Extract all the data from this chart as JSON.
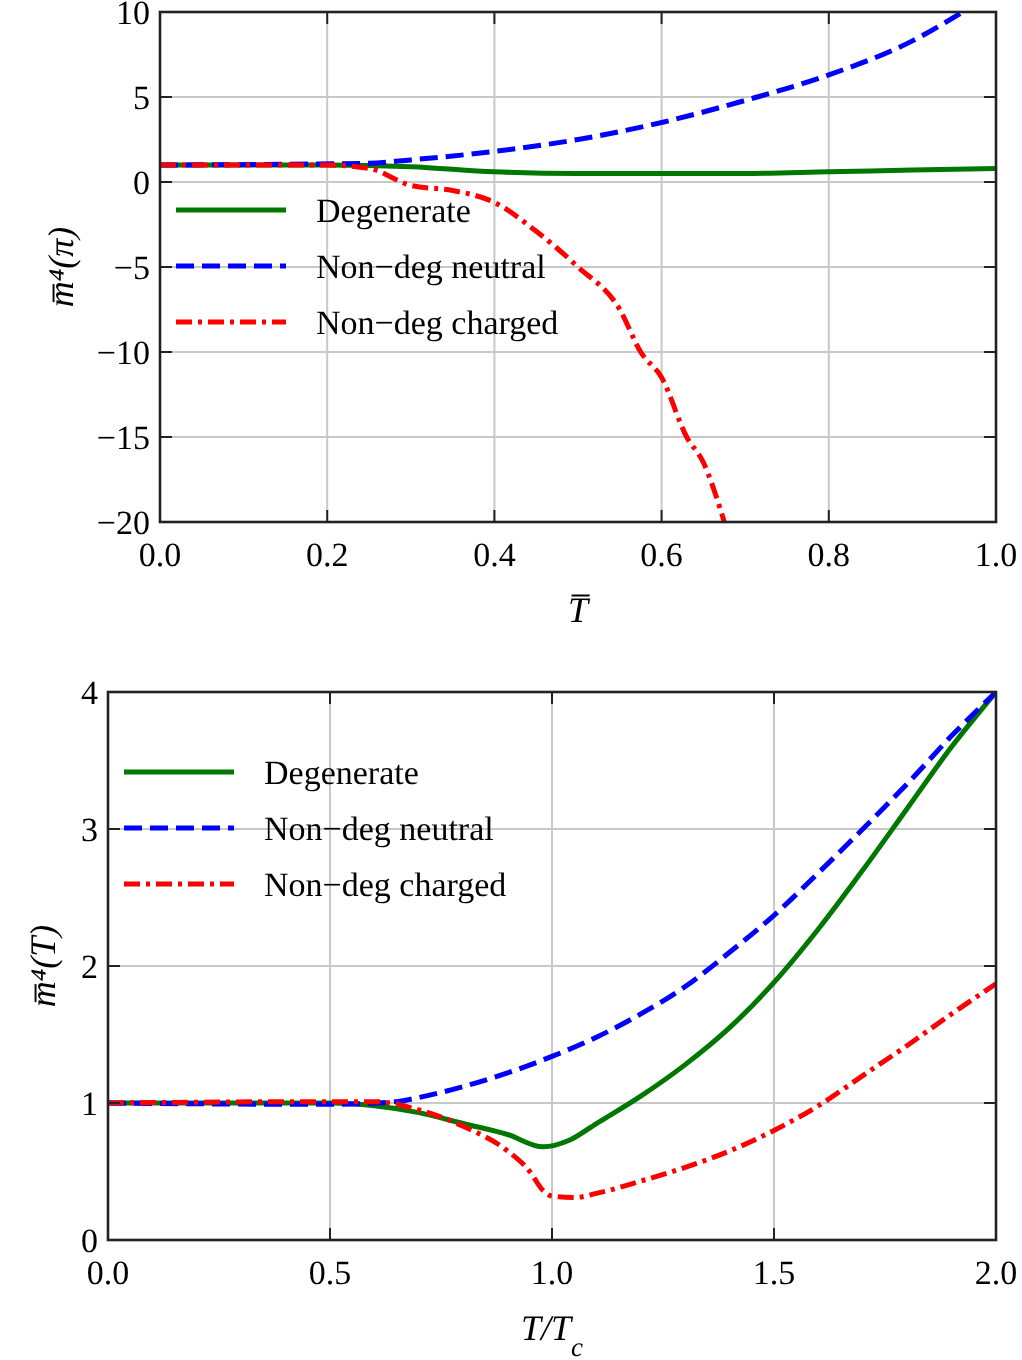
{
  "chart_data": [
    {
      "type": "line",
      "xlabel": "T̅",
      "ylabel": "m̅⁴(π)",
      "xlim": [
        0,
        1
      ],
      "ylim": [
        -20,
        10
      ],
      "xticks": [
        {
          "value": 0,
          "label": "0.0"
        },
        0.2,
        0.4,
        0.6,
        0.8,
        {
          "value": 1,
          "label": "1.0"
        }
      ],
      "yticks": [
        {
          "value": -20,
          "label": "−20"
        },
        {
          "value": -15,
          "label": "−15"
        },
        {
          "value": -10,
          "label": "−10"
        },
        {
          "value": -5,
          "label": "−5"
        },
        0,
        5,
        10
      ],
      "grid": true,
      "legend": "bottom left",
      "series": [
        {
          "name": "Degenerate",
          "color": "#007700",
          "line_style": "solid",
          "x": [
            0,
            0.2,
            0.3,
            0.4,
            0.5,
            0.6,
            0.7,
            0.8,
            0.9,
            1.0
          ],
          "values": [
            1,
            1,
            0.9,
            0.6,
            0.5,
            0.5,
            0.5,
            0.6,
            0.7,
            0.8
          ]
        },
        {
          "name": "Non−deg neutral",
          "color": "#0000ff",
          "line_style": "dashed",
          "x": [
            0,
            0.25,
            0.3,
            0.4,
            0.5,
            0.6,
            0.7,
            0.8,
            0.9,
            0.96
          ],
          "values": [
            1,
            1.1,
            1.3,
            1.8,
            2.5,
            3.5,
            4.8,
            6.3,
            8.3,
            10
          ]
        },
        {
          "name": "Non−deg charged",
          "color": "#ff0000",
          "line_style": "dashdot",
          "x": [
            0,
            0.2,
            0.25,
            0.3,
            0.35,
            0.4,
            0.45,
            0.5,
            0.55,
            0.575,
            0.6,
            0.63,
            0.65,
            0.675
          ],
          "values": [
            1,
            1,
            0.8,
            -0.2,
            -0.5,
            -1.2,
            -2.9,
            -5,
            -7.5,
            -10,
            -11.5,
            -15,
            -16.5,
            -20
          ]
        }
      ]
    },
    {
      "type": "line",
      "xlabel": "T/T$_{c}$",
      "ylabel": "m̅⁴(T)",
      "xlim": [
        0,
        2
      ],
      "ylim": [
        0,
        4
      ],
      "xticks": [
        {
          "value": 0,
          "label": "0.0"
        },
        0.5,
        {
          "value": 1,
          "label": "1.0"
        },
        1.5,
        {
          "value": 2,
          "label": "2.0"
        }
      ],
      "yticks": [
        0,
        1,
        2,
        3,
        4
      ],
      "grid": true,
      "legend": "top left",
      "series": [
        {
          "name": "Degenerate",
          "color": "#007700",
          "line_style": "solid",
          "x": [
            0,
            0.5,
            0.6,
            0.7,
            0.8,
            0.9,
            0.98,
            1.04,
            1.1,
            1.2,
            1.3,
            1.4,
            1.5,
            1.6,
            1.7,
            1.8,
            1.9,
            2.0
          ],
          "values": [
            1,
            1,
            0.98,
            0.93,
            0.85,
            0.77,
            0.68,
            0.73,
            0.85,
            1.05,
            1.28,
            1.55,
            1.88,
            2.27,
            2.7,
            3.15,
            3.6,
            4
          ]
        },
        {
          "name": "Non−deg neutral",
          "color": "#0000ff",
          "line_style": "dashed",
          "x": [
            0,
            0.5,
            0.65,
            0.7,
            0.8,
            0.9,
            1.0,
            1.1,
            1.2,
            1.3,
            1.4,
            1.5,
            1.6,
            1.7,
            1.8,
            1.9,
            2.0
          ],
          "values": [
            1,
            0.99,
            1.01,
            1.04,
            1.12,
            1.22,
            1.34,
            1.48,
            1.65,
            1.85,
            2.1,
            2.37,
            2.68,
            3.0,
            3.33,
            3.68,
            4
          ]
        },
        {
          "name": "Non−deg charged",
          "color": "#ff0000",
          "line_style": "dashdot",
          "x": [
            0,
            0.5,
            0.6,
            0.7,
            0.8,
            0.9,
            0.95,
            0.98,
            1.0,
            1.05,
            1.1,
            1.2,
            1.3,
            1.4,
            1.5,
            1.6,
            1.7,
            1.8,
            1.9,
            2.0
          ],
          "values": [
            1,
            1.01,
            1.01,
            0.95,
            0.83,
            0.65,
            0.5,
            0.36,
            0.32,
            0.31,
            0.34,
            0.43,
            0.53,
            0.65,
            0.8,
            0.98,
            1.2,
            1.42,
            1.65,
            1.87
          ]
        }
      ]
    }
  ]
}
